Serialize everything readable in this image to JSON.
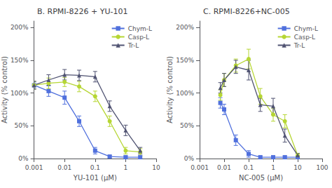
{
  "chart_data": [
    {
      "type": "line",
      "title": "B. RPMI-8226 + YU-101",
      "xlabel": "YU-101 (μM)",
      "ylabel": "Activity (% control)",
      "log": "x",
      "xlim": [
        0.001,
        10
      ],
      "ylim": [
        0,
        210
      ],
      "xticks": [
        0.001,
        0.01,
        0.1,
        1,
        10
      ],
      "yticks": [
        {
          "value": 0,
          "label": "0%"
        },
        {
          "value": 50,
          "label": "50%"
        },
        {
          "value": 100,
          "label": "100%"
        },
        {
          "value": 150,
          "label": "150%"
        },
        {
          "value": 200,
          "label": "200%"
        }
      ],
      "grid": false,
      "legend": "upper right",
      "x": [
        0.001,
        0.003,
        0.01,
        0.03,
        0.1,
        0.3,
        1,
        3
      ],
      "series": [
        {
          "name": "Chym-L",
          "marker": "square",
          "values": [
            112,
            103,
            93,
            57,
            12,
            3,
            2,
            2
          ],
          "errors": [
            5,
            8,
            10,
            8,
            5,
            2,
            2,
            2
          ]
        },
        {
          "name": "Casp-L",
          "marker": "circle",
          "values": [
            112,
            115,
            117,
            110,
            95,
            57,
            12,
            10
          ],
          "errors": [
            6,
            8,
            7,
            8,
            8,
            8,
            5,
            5
          ]
        },
        {
          "name": "Tr-L",
          "marker": "triangle",
          "values": [
            112,
            120,
            128,
            127,
            125,
            80,
            43,
            12
          ],
          "errors": [
            6,
            8,
            8,
            8,
            8,
            8,
            8,
            5
          ]
        }
      ]
    },
    {
      "type": "line",
      "title": "C. RPMI-8226+NC-005",
      "xlabel": "NC-005 (μM)",
      "ylabel": "Activity (% control)",
      "log": "x",
      "xlim": [
        0.001,
        100
      ],
      "ylim": [
        0,
        210
      ],
      "xticks": [
        0.001,
        0.01,
        0.1,
        1,
        10,
        100
      ],
      "yticks": [
        {
          "value": 0,
          "label": "0%"
        },
        {
          "value": 50,
          "label": "50%"
        },
        {
          "value": 100,
          "label": "100%"
        },
        {
          "value": 150,
          "label": "150%"
        },
        {
          "value": 200,
          "label": "200%"
        }
      ],
      "grid": false,
      "legend": "upper right",
      "x": [
        0.007,
        0.01,
        0.03,
        0.1,
        0.3,
        1,
        3,
        10
      ],
      "series": [
        {
          "name": "Chym-L",
          "marker": "square",
          "values": [
            85,
            75,
            28,
            7,
            2,
            2,
            2,
            2
          ],
          "errors": [
            8,
            8,
            8,
            5,
            2,
            2,
            2,
            2
          ]
        },
        {
          "name": "Casp-L",
          "marker": "circle",
          "values": [
            97,
            120,
            142,
            152,
            95,
            67,
            57,
            5
          ],
          "errors": [
            8,
            10,
            10,
            15,
            12,
            10,
            10,
            3
          ]
        },
        {
          "name": "Tr-L",
          "marker": "triangle",
          "values": [
            108,
            120,
            140,
            135,
            82,
            80,
            35,
            5
          ],
          "errors": [
            8,
            10,
            10,
            15,
            10,
            12,
            10,
            3
          ]
        }
      ]
    }
  ]
}
